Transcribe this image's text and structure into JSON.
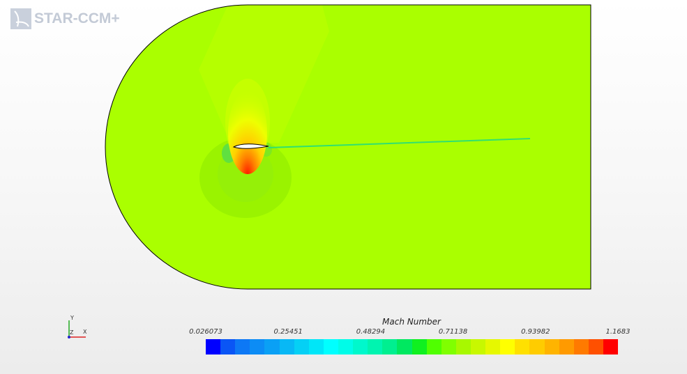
{
  "logo": {
    "text": "STAR-CCM+",
    "icon": "star-ccm-logo-icon"
  },
  "legend": {
    "title": "Mach Number",
    "ticks": [
      "0.026073",
      "0.25451",
      "0.48294",
      "0.71138",
      "0.93982",
      "1.1683"
    ],
    "min": 0.026073,
    "max": 1.1683,
    "colors": [
      "#0000ff",
      "#0a55f5",
      "#0d78f5",
      "#0c8cf5",
      "#0aa0f5",
      "#08b8f5",
      "#05d0f5",
      "#00e6f8",
      "#00ffff",
      "#00fce8",
      "#00f8cc",
      "#00f4b0",
      "#00ef90",
      "#00e860",
      "#10f020",
      "#50ff00",
      "#80ff00",
      "#a8f800",
      "#c8f800",
      "#e6f800",
      "#ffff00",
      "#ffe000",
      "#ffcc00",
      "#ffb400",
      "#ff9a00",
      "#ff7a00",
      "#ff5000",
      "#ff0000"
    ]
  },
  "triad": {
    "x": "X",
    "y": "Y",
    "z": "Z"
  },
  "colors": {
    "freestream": "#aaff00",
    "outline": "#000000"
  }
}
